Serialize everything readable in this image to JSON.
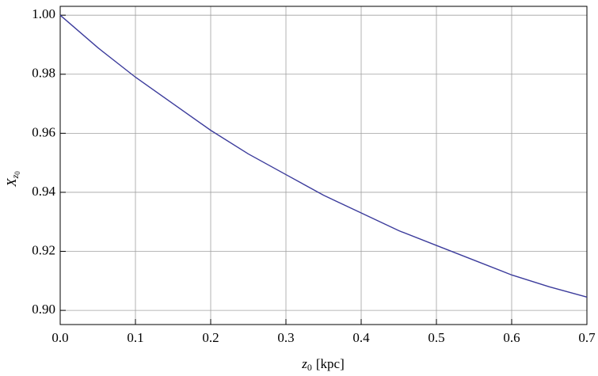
{
  "chart_data": {
    "type": "line",
    "x_label": {
      "symbol": "z",
      "subscript": "0",
      "unit": "[kpc]"
    },
    "y_label": {
      "symbol": "X",
      "subscript": "z",
      "subsubscript": "0"
    },
    "x": [
      0,
      0.05,
      0.1,
      0.15,
      0.2,
      0.25,
      0.3,
      0.35,
      0.4,
      0.45,
      0.5,
      0.55,
      0.6,
      0.65,
      0.7
    ],
    "series": [
      {
        "color": "#3c3c9c",
        "values": [
          1.0,
          0.989,
          0.979,
          0.97,
          0.961,
          0.953,
          0.946,
          0.939,
          0.933,
          0.927,
          0.922,
          0.917,
          0.912,
          0.908,
          0.9045
        ]
      }
    ],
    "xlim": [
      0,
      0.7
    ],
    "ylim": [
      0.8952,
      1.003
    ],
    "xticks": [
      {
        "value": 0,
        "label": "0.0"
      },
      0.1,
      0.2,
      0.3,
      0.4,
      0.5,
      0.6,
      0.7
    ],
    "yticks": [
      {
        "value": 0.9,
        "label": "0.90"
      },
      {
        "value": 0.92,
        "label": "0.92"
      },
      {
        "value": 0.94,
        "label": "0.94"
      },
      {
        "value": 0.96,
        "label": "0.96"
      },
      {
        "value": 0.98,
        "label": "0.98"
      },
      {
        "value": 1.0,
        "label": "1.00"
      }
    ],
    "grid": true
  }
}
